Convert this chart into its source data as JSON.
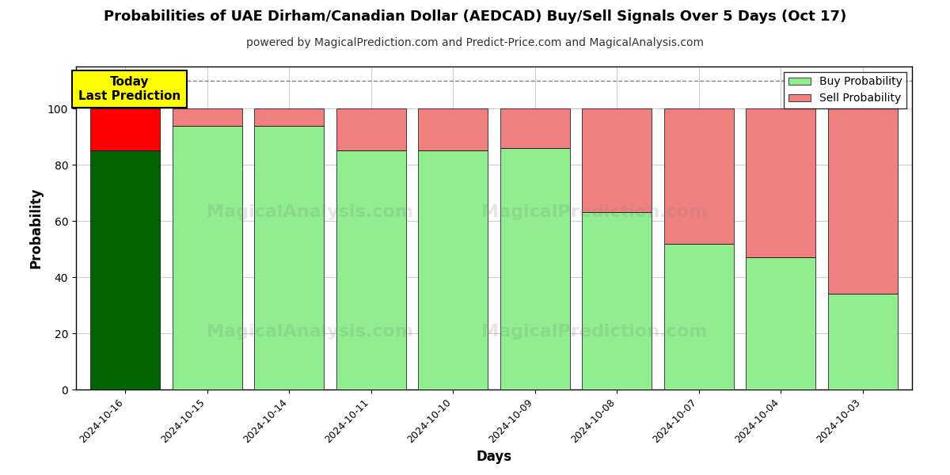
{
  "title": "Probabilities of UAE Dirham/Canadian Dollar (AEDCAD) Buy/Sell Signals Over 5 Days (Oct 17)",
  "subtitle": "powered by MagicalPrediction.com and Predict-Price.com and MagicalAnalysis.com",
  "xlabel": "Days",
  "ylabel": "Probability",
  "categories": [
    "2024-10-16",
    "2024-10-15",
    "2024-10-14",
    "2024-10-11",
    "2024-10-10",
    "2024-10-09",
    "2024-10-08",
    "2024-10-07",
    "2024-10-04",
    "2024-10-03"
  ],
  "buy_values": [
    85,
    94,
    94,
    85,
    85,
    86,
    63,
    52,
    47,
    34
  ],
  "sell_values": [
    15,
    6,
    6,
    15,
    15,
    14,
    37,
    48,
    53,
    66
  ],
  "today_bar_buy_color": "#006400",
  "today_bar_sell_color": "#FF0000",
  "other_bar_buy_color": "#90EE90",
  "other_bar_sell_color": "#F08080",
  "annotation_text": "Today\nLast Prediction",
  "annotation_bg_color": "#FFFF00",
  "annotation_border_color": "#000000",
  "legend_buy_label": "Buy Probability",
  "legend_sell_label": "Sell Probability",
  "ylim": [
    0,
    115
  ],
  "dashed_line_y": 110,
  "grid_color": "#cccccc",
  "background_color": "#ffffff",
  "title_fontsize": 13,
  "subtitle_fontsize": 10,
  "bar_width": 0.85
}
